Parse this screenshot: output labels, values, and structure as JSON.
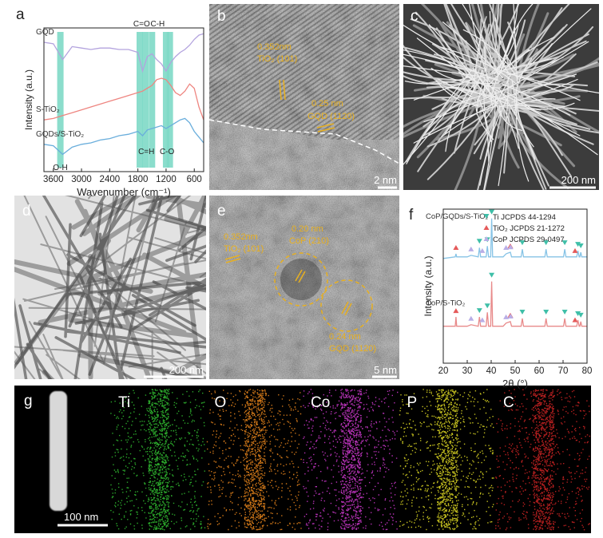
{
  "chart_data": [
    {
      "type": "line",
      "label": "a",
      "y_label": "Intensity (a.u.)",
      "x_label": "Wavenumber (cm⁻¹)",
      "x": [
        3800,
        3600,
        3400,
        3200,
        3000,
        2800,
        2600,
        2400,
        2200,
        2000,
        1800,
        1700,
        1600,
        1500,
        1400,
        1300,
        1200,
        1100,
        1000,
        900,
        800,
        700,
        600,
        500,
        400
      ],
      "series": [
        {
          "name": "GQD",
          "color": "#b3a3de",
          "values": [
            9.0,
            8.9,
            7.8,
            8.7,
            8.6,
            8.5,
            8.6,
            8.6,
            8.5,
            8.5,
            8.3,
            7.0,
            8.0,
            8.2,
            7.8,
            7.5,
            7.0,
            7.6,
            8.0,
            8.3,
            8.5,
            8.8,
            9.2,
            9.5,
            9.6
          ]
        },
        {
          "name": "S-TiO₂",
          "color": "#ee8580",
          "values": [
            3.6,
            3.7,
            3.9,
            4.1,
            4.3,
            4.5,
            4.7,
            4.9,
            5.1,
            5.3,
            5.5,
            5.6,
            5.8,
            6.0,
            6.4,
            6.5,
            6.4,
            6.0,
            5.5,
            5.3,
            5.6,
            6.1,
            5.8,
            4.5,
            3.6
          ]
        },
        {
          "name": "GQDs/S-TiO₂",
          "color": "#6aaedc",
          "values": [
            1.9,
            1.8,
            1.2,
            1.7,
            1.9,
            2.0,
            2.2,
            2.3,
            2.5,
            2.6,
            2.8,
            2.5,
            2.9,
            3.0,
            3.1,
            3.2,
            3.0,
            3.2,
            3.4,
            3.6,
            3.7,
            3.4,
            2.8,
            2.4,
            2.0
          ]
        }
      ],
      "bands": [
        3450,
        1760,
        1640,
        1500,
        1200,
        1120
      ],
      "band_color": "#7ed9c6",
      "annotations": [
        {
          "text": "C=O",
          "x": 1720,
          "side": "top"
        },
        {
          "text": "C-H",
          "x": 1380,
          "side": "top"
        },
        {
          "text": "O-H",
          "x": 3450,
          "side": "bottom"
        },
        {
          "text": "C=H",
          "x": 1620,
          "side": "bottom"
        },
        {
          "text": "C-O",
          "x": 1180,
          "side": "bottom"
        }
      ],
      "xlim": [
        3800,
        400
      ],
      "ylim": [
        0,
        10
      ],
      "xticks": [
        3600,
        3000,
        2400,
        1800,
        1200,
        600
      ]
    },
    {
      "type": "line",
      "label": "f",
      "y_label": "Intensity (a.u.)",
      "x_label": "2θ (°)",
      "x": [
        20,
        25,
        25.3,
        25.6,
        30,
        31.6,
        34.6,
        35.1,
        35.6,
        37.9,
        38.4,
        38.9,
        39.8,
        40.2,
        40.6,
        45,
        46.2,
        48,
        48.5,
        52.5,
        53,
        53.5,
        62.4,
        62.9,
        63.4,
        70.2,
        70.7,
        71.2,
        75.7,
        76.2,
        76.7,
        77,
        77.4,
        77.8,
        80
      ],
      "series": [
        {
          "name": "CoP/GQDs/S-TiO₂",
          "color": "#86c3e6",
          "values": [
            6.8,
            6.9,
            7.1,
            6.9,
            6.9,
            7.0,
            6.9,
            7.5,
            6.9,
            6.9,
            7.6,
            6.9,
            6.9,
            9.4,
            6.9,
            6.9,
            7.1,
            7.2,
            6.9,
            6.9,
            7.4,
            6.9,
            6.9,
            7.4,
            6.9,
            6.9,
            7.4,
            6.9,
            6.9,
            7.3,
            6.9,
            6.9,
            7.2,
            6.9,
            6.9
          ]
        },
        {
          "name": "CoP/S-TiO₂",
          "color": "#e88a8a",
          "values": [
            2.4,
            2.4,
            3.0,
            2.4,
            2.4,
            2.5,
            2.4,
            3.0,
            2.4,
            2.4,
            3.3,
            2.4,
            2.4,
            5.3,
            2.4,
            2.4,
            2.6,
            2.7,
            2.4,
            2.4,
            2.9,
            2.4,
            2.4,
            2.9,
            2.4,
            2.4,
            2.9,
            2.4,
            2.4,
            2.8,
            2.4,
            2.4,
            2.7,
            2.4,
            2.4
          ]
        }
      ],
      "phases": [
        {
          "name": "Ti JCPDS 44-1294",
          "color": "#3fbfa8",
          "marker": "triangle-down",
          "positions": [
            35.1,
            38.4,
            40.2,
            53.0,
            62.9,
            70.7,
            76.2,
            77.4
          ]
        },
        {
          "name": "TiO₂ JCPDS 21-1272",
          "color": "#e55a5a",
          "marker": "triangle-up",
          "positions": [
            25.3,
            48.0,
            75.0
          ]
        },
        {
          "name": "CoP JCPDS 29-0497",
          "color": "#b9aee6",
          "marker": "triangle-up",
          "positions": [
            31.6,
            36.3,
            46.2,
            48.1
          ]
        }
      ],
      "legend": "upper right",
      "xlim": [
        20,
        80
      ],
      "ylim": [
        0,
        10
      ],
      "xticks": [
        20,
        30,
        40,
        50,
        60,
        70,
        80
      ]
    }
  ],
  "micrographs": [
    {
      "label": "b",
      "scale_bar": "2 nm",
      "texts": [
        "0.352nm",
        "TiO₂ (101)",
        "0.25 nm",
        "GQD (1120)"
      ]
    },
    {
      "label": "c",
      "scale_bar": "200 nm"
    },
    {
      "label": "d",
      "scale_bar": "200 nm"
    },
    {
      "label": "e",
      "scale_bar": "5 nm",
      "texts": [
        "0.352nm",
        "TiO₂ (101)",
        "0.20 nm",
        "CoP (210)",
        "0.24 nm",
        "GQD (1120)"
      ]
    }
  ],
  "mapping": {
    "label": "g",
    "scale_bar": "100 nm",
    "elements": [
      {
        "name": "Ti",
        "color": "#33c433"
      },
      {
        "name": "O",
        "color": "#f08a1c"
      },
      {
        "name": "Co",
        "color": "#d23ad2"
      },
      {
        "name": "P",
        "color": "#e6e025"
      },
      {
        "name": "C",
        "color": "#d42424"
      }
    ]
  }
}
